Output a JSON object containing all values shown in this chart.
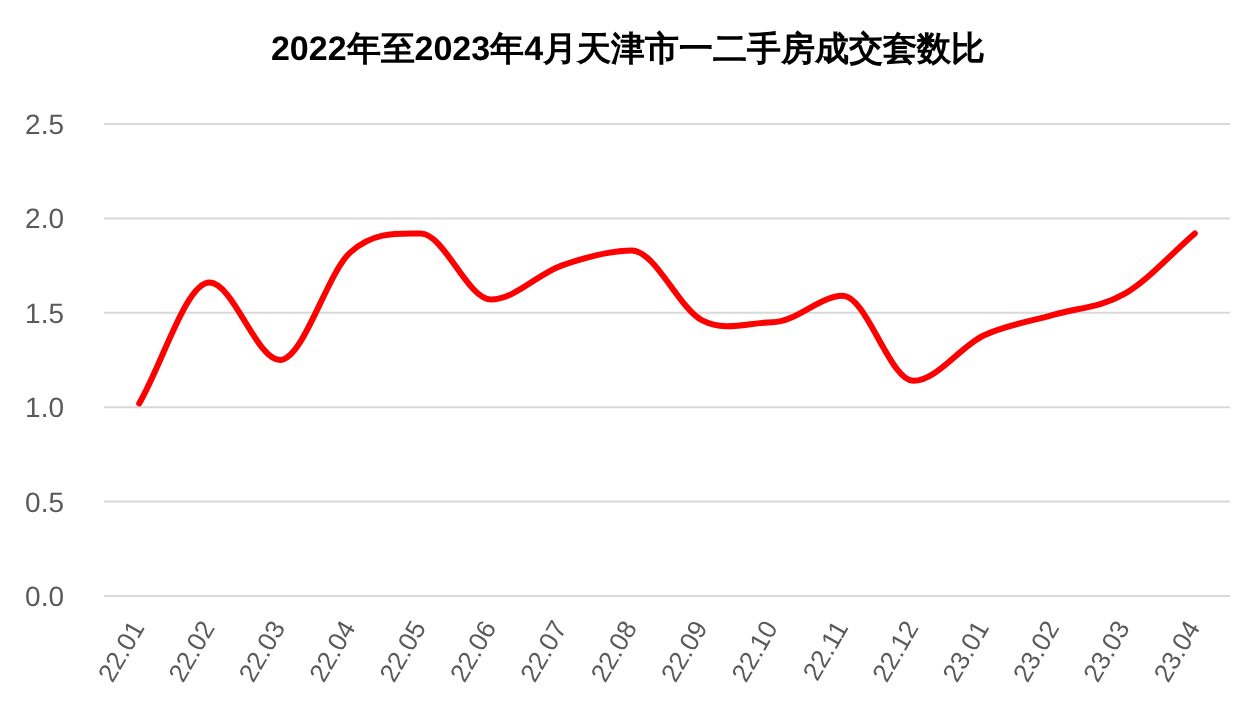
{
  "chart_data": {
    "type": "line",
    "title": "2022年至2023年4月天津市一二手房成交套数比",
    "categories": [
      "22.01",
      "22.02",
      "22.03",
      "22.04",
      "22.05",
      "22.06",
      "22.07",
      "22.08",
      "22.09",
      "22.10",
      "22.11",
      "22.12",
      "23.01",
      "23.02",
      "23.03",
      "23.04"
    ],
    "series": [
      {
        "color": "#ff0000",
        "values": [
          1.02,
          1.66,
          1.25,
          1.82,
          1.92,
          1.57,
          1.75,
          1.83,
          1.46,
          1.45,
          1.59,
          1.14,
          1.38,
          1.49,
          1.6,
          1.92
        ]
      }
    ],
    "ylim": [
      0,
      2.5
    ],
    "yticks": [
      {
        "value": 0,
        "label": "0.0"
      },
      {
        "value": 0.5,
        "label": "0.5"
      },
      {
        "value": 1,
        "label": "1.0"
      },
      {
        "value": 1.5,
        "label": "1.5"
      },
      {
        "value": 2,
        "label": "2.0"
      },
      {
        "value": 2.5,
        "label": "2.5"
      }
    ],
    "grid": "y",
    "marker": "none",
    "line_style": "solid"
  }
}
